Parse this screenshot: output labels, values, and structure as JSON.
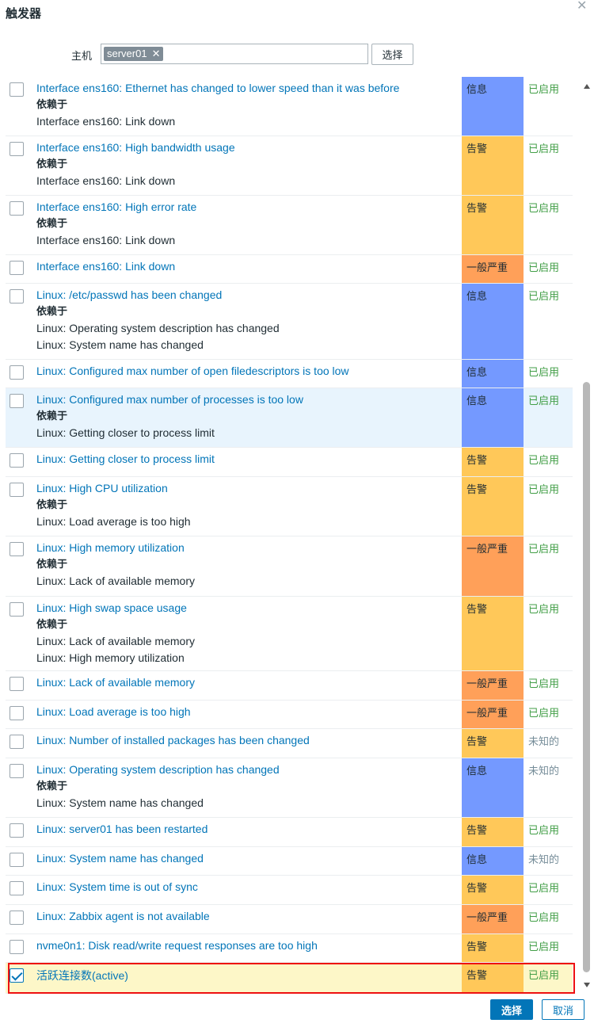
{
  "dialog": {
    "title": "触发器",
    "close_icon": "close-icon"
  },
  "filter": {
    "host_label": "主机",
    "host_chip": "server01",
    "chip_remove": "✕",
    "select_label": "选择"
  },
  "colors": {
    "info": "#7499ff",
    "warning": "#ffc859",
    "average": "#ffa059",
    "enabled": "#429e47",
    "unknown": "#768d99",
    "link": "#0275b8"
  },
  "depends_label": "依赖于",
  "triggers": [
    {
      "name": "Interface ens160: Ethernet has changed to lower speed than it was before",
      "deps": [
        "Interface ens160: Link down"
      ],
      "severity": "信息",
      "sev_color": "#7499ff",
      "status": "已启用",
      "status_type": "enabled",
      "checked": false
    },
    {
      "name": "Interface ens160: High bandwidth usage",
      "deps": [
        "Interface ens160: Link down"
      ],
      "severity": "告警",
      "sev_color": "#ffc859",
      "status": "已启用",
      "status_type": "enabled",
      "checked": false
    },
    {
      "name": "Interface ens160: High error rate",
      "deps": [
        "Interface ens160: Link down"
      ],
      "severity": "告警",
      "sev_color": "#ffc859",
      "status": "已启用",
      "status_type": "enabled",
      "checked": false
    },
    {
      "name": "Interface ens160: Link down",
      "deps": [],
      "severity": "一般严重",
      "sev_color": "#ffa059",
      "status": "已启用",
      "status_type": "enabled",
      "checked": false
    },
    {
      "name": "Linux: /etc/passwd has been changed",
      "deps": [
        "Linux: Operating system description has changed",
        "Linux: System name has changed"
      ],
      "severity": "信息",
      "sev_color": "#7499ff",
      "status": "已启用",
      "status_type": "enabled",
      "checked": false
    },
    {
      "name": "Linux: Configured max number of open filedescriptors is too low",
      "deps": [],
      "severity": "信息",
      "sev_color": "#7499ff",
      "status": "已启用",
      "status_type": "enabled",
      "checked": false
    },
    {
      "name": "Linux: Configured max number of processes is too low",
      "deps": [
        "Linux: Getting closer to process limit"
      ],
      "severity": "信息",
      "sev_color": "#7499ff",
      "status": "已启用",
      "status_type": "enabled",
      "checked": false,
      "highlight": true
    },
    {
      "name": "Linux: Getting closer to process limit",
      "deps": [],
      "severity": "告警",
      "sev_color": "#ffc859",
      "status": "已启用",
      "status_type": "enabled",
      "checked": false
    },
    {
      "name": "Linux: High CPU utilization",
      "deps": [
        "Linux: Load average is too high"
      ],
      "severity": "告警",
      "sev_color": "#ffc859",
      "status": "已启用",
      "status_type": "enabled",
      "checked": false
    },
    {
      "name": "Linux: High memory utilization",
      "deps": [
        "Linux: Lack of available memory"
      ],
      "severity": "一般严重",
      "sev_color": "#ffa059",
      "status": "已启用",
      "status_type": "enabled",
      "checked": false
    },
    {
      "name": "Linux: High swap space usage",
      "deps": [
        "Linux: Lack of available memory",
        "Linux: High memory utilization"
      ],
      "severity": "告警",
      "sev_color": "#ffc859",
      "status": "已启用",
      "status_type": "enabled",
      "checked": false
    },
    {
      "name": "Linux: Lack of available memory",
      "deps": [],
      "severity": "一般严重",
      "sev_color": "#ffa059",
      "status": "已启用",
      "status_type": "enabled",
      "checked": false
    },
    {
      "name": "Linux: Load average is too high",
      "deps": [],
      "severity": "一般严重",
      "sev_color": "#ffa059",
      "status": "已启用",
      "status_type": "enabled",
      "checked": false
    },
    {
      "name": "Linux: Number of installed packages has been changed",
      "deps": [],
      "severity": "告警",
      "sev_color": "#ffc859",
      "status": "未知的",
      "status_type": "unknown",
      "checked": false
    },
    {
      "name": "Linux: Operating system description has changed",
      "deps": [
        "Linux: System name has changed"
      ],
      "severity": "信息",
      "sev_color": "#7499ff",
      "status": "未知的",
      "status_type": "unknown",
      "checked": false
    },
    {
      "name": "Linux: server01 has been restarted",
      "deps": [],
      "severity": "告警",
      "sev_color": "#ffc859",
      "status": "已启用",
      "status_type": "enabled",
      "checked": false
    },
    {
      "name": "Linux: System name has changed",
      "deps": [],
      "severity": "信息",
      "sev_color": "#7499ff",
      "status": "未知的",
      "status_type": "unknown",
      "checked": false
    },
    {
      "name": "Linux: System time is out of sync",
      "deps": [],
      "severity": "告警",
      "sev_color": "#ffc859",
      "status": "已启用",
      "status_type": "enabled",
      "checked": false
    },
    {
      "name": "Linux: Zabbix agent is not available",
      "deps": [],
      "severity": "一般严重",
      "sev_color": "#ffa059",
      "status": "已启用",
      "status_type": "enabled",
      "checked": false
    },
    {
      "name": "nvme0n1: Disk read/write request responses are too high",
      "deps": [],
      "severity": "告警",
      "sev_color": "#ffc859",
      "status": "已启用",
      "status_type": "enabled",
      "checked": false
    },
    {
      "name": "活跃连接数(active)",
      "deps": [],
      "severity": "告警",
      "sev_color": "#ffc859",
      "status": "已启用",
      "status_type": "enabled",
      "checked": true,
      "selected": true
    }
  ],
  "footer": {
    "select_label": "选择",
    "cancel_label": "取消"
  }
}
